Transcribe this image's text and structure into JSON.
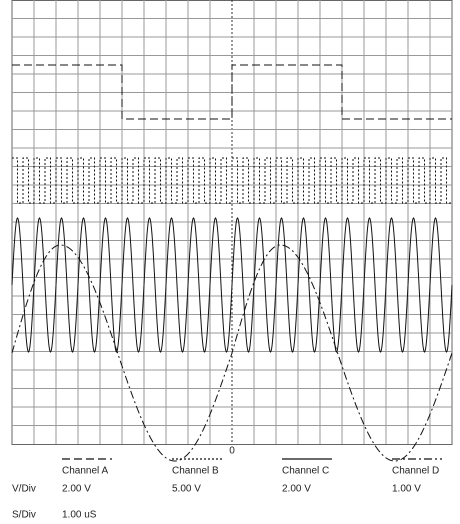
{
  "center_label": "0",
  "channels": [
    {
      "name": "Channel A",
      "v_div": "2.00 V"
    },
    {
      "name": "Channel B",
      "v_div": "5.00 V"
    },
    {
      "name": "Channel C",
      "v_div": "2.00 V"
    },
    {
      "name": "Channel D",
      "v_div": "1.00 V"
    }
  ],
  "v_div_label": "V/Div",
  "s_div_label": "S/Div",
  "s_div_value": "1.00 uS"
}
